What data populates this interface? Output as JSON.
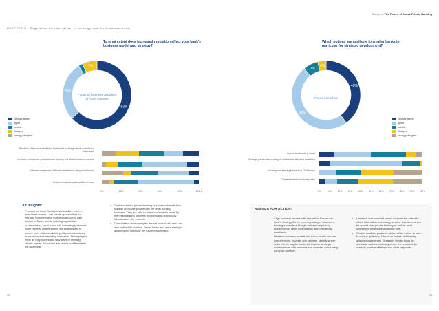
{
  "header": {
    "left": "CHAPTER II · Regulation as a key driver of strategy and the business model",
    "right_prefix": "Clarity on ",
    "right_bold": "The Future of Swiss Private Banking"
  },
  "colors": {
    "navy": "#1a3f7e",
    "light_blue": "#a6cbe9",
    "teal": "#177f9a",
    "yellow": "#f2c21a",
    "tan": "#b5a58e",
    "axis": "#999999"
  },
  "left_page": {
    "question": "To what extent does increased regulation affect your bank's business model and strategy?",
    "chart_data": [
      {
        "type": "pie",
        "title": "To what extent does increased regulation affect your bank's business model and strategy?",
        "center_label": "Focus of business activities on core markets",
        "slices": [
          {
            "color": "#1a3f7e",
            "value": 63,
            "label": "63%"
          },
          {
            "color": "#a6cbe9",
            "value": 28,
            "label": "28%"
          },
          {
            "color": "#177f9a",
            "value": 2,
            "label": ""
          },
          {
            "color": "#f2c21a",
            "value": 7,
            "label": "7%"
          }
        ]
      },
      {
        "type": "bar",
        "categories": [
          "Reduction of business activities in Switzerland for foreign clients domiciled in Switzerland",
          "For clients from abroad: go-ins/tensions of needs to a defined minimum amount",
          "Extensive acceptance of dividend assets from deregulation/trends",
          "Reduced productivity due additional costs"
        ],
        "series": [
          {
            "color": "#1a3f7e",
            "values": [
              16,
              12,
              10,
              5
            ]
          },
          {
            "color": "#a6cbe9",
            "values": [
              20,
              46,
              32,
              58
            ]
          },
          {
            "color": "#177f9a",
            "values": [
              26,
              26,
              28,
              25
            ]
          },
          {
            "color": "#f2c21a",
            "values": [
              24,
              12,
              8,
              4
            ]
          },
          {
            "color": "#b5a58e",
            "values": [
              14,
              4,
              22,
              8
            ]
          }
        ],
        "reversed": true,
        "xlim": [
          0,
          100
        ],
        "ticks": [
          "0%",
          "20%",
          "40%",
          "60%",
          "80%",
          "100%"
        ]
      }
    ],
    "legend": [
      {
        "label": "strongly agree",
        "color": "#1a3f7e"
      },
      {
        "label": "agree",
        "color": "#a6cbe9"
      },
      {
        "label": "neutral",
        "color": "#177f9a"
      },
      {
        "label": "disagree",
        "color": "#f2c21a"
      },
      {
        "label": "strongly disagree",
        "color": "#b5a58e"
      }
    ],
    "insights_title": "Our insights:",
    "insights_col1": [
      "Pressure on small Swiss private banks – even in their home market – will create opportunities for entrants from emerging markets via M&A to gain access to Swiss private banking capabilities.",
      "In our opinion, small banks will increasingly become niche players. Differentiation will enable them to secure parts of the available profit pool, introducing true service and marketing innovation. Niche players excel as they understand new ways of meeting clients' needs. Banks that are unable to differentiate will disappear."
    ],
    "insights_col2": [
      "Cantonal banks' private banking businesses benefit from stability and scale provided by the retail banking business. They are able to share investments made by the retail banking business in information technology infrastructure, for example.",
      "Consolidation and synergies are set to deal with new cost and profitability realities. Fewer banks and more strategic alliances will dominate the future marketplace."
    ],
    "page_number": "36"
  },
  "right_page": {
    "question": "Which options are available to smaller banks in particular for strategic development?",
    "chart_data": [
      {
        "type": "pie",
        "title": "Which options are available to smaller banks in particular for strategic development?",
        "center_label": "Focus on niches",
        "slices": [
          {
            "color": "#1a3f7e",
            "value": 40,
            "label": "40%"
          },
          {
            "color": "#a6cbe9",
            "value": 49,
            "label": "49%"
          },
          {
            "color": "#177f9a",
            "value": 7,
            "label": "7%"
          },
          {
            "color": "#f2c21a",
            "value": 4,
            "label": "4%"
          }
        ]
      },
      {
        "type": "bar",
        "categories": [
          "Focus on sustainable products",
          "Strategic (value chain sourcing or collaboration with other institutions",
          "Exchange the banking license for a CISA license",
          "Create the bank into a family office"
        ],
        "series": [
          {
            "color": "#1a3f7e",
            "values": [
              14,
              10,
              0,
              5
            ]
          },
          {
            "color": "#a6cbe9",
            "values": [
              36,
              70,
              16,
              12
            ]
          },
          {
            "color": "#177f9a",
            "values": [
              34,
              18,
              24,
              20
            ]
          },
          {
            "color": "#f2c21a",
            "values": [
              10,
              1,
              32,
              34
            ]
          },
          {
            "color": "#b5a58e",
            "values": [
              6,
              1,
              28,
              29
            ]
          }
        ],
        "reversed": false,
        "xlim": [
          0,
          100
        ],
        "ticks": [
          "0%",
          "10%",
          "20%",
          "30%",
          "40%",
          "50%",
          "60%",
          "70%",
          "80%",
          "90%",
          "100%"
        ]
      }
    ],
    "legend": [
      {
        "label": "strongly agree",
        "color": "#1a3f7e"
      },
      {
        "label": "agree",
        "color": "#a6cbe9"
      },
      {
        "label": "neutral",
        "color": "#177f9a"
      },
      {
        "label": "disagree",
        "color": "#f2c21a"
      },
      {
        "label": "strongly disagree",
        "color": "#b5a58e"
      }
    ],
    "agenda_title": "AGENDA FOR ACTION:",
    "agenda_col1": [
      "Align business models with regulation. Ensure the bank's strategy fits the new regulatory environment, forming a seamless triangle between regulatory requirements, client expectations and operational excellence.",
      "Redefine business models and focus clearly on core competencies, markets and services. Identify where scale effects may be achieved. Explore strategic collaborations with business and consider outsourcing non-core activities."
    ],
    "agenda_col2": [
      "Universal and cantonal banks: consider the extent to which information technology or other investments can be spread over private banking as well as retail operations while adding value to both.",
      "Smaller banks in particular: differentiate further in order to survive profitably. A focus on niches and forming alliances is essential. Strategies should focus on domestic markets or clearly define the cross-border markets, service offerings and client segments."
    ],
    "page_number": "38"
  }
}
